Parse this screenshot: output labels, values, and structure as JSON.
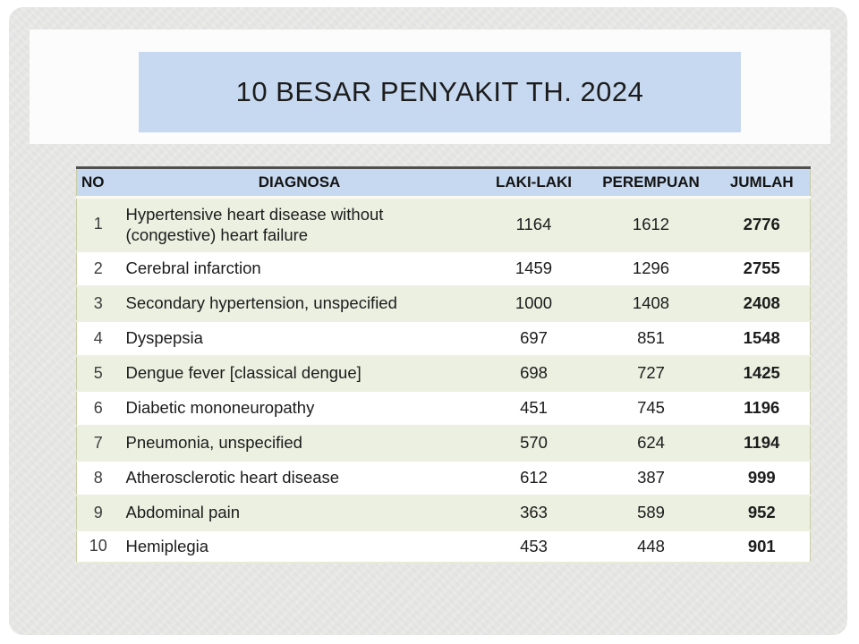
{
  "slide": {
    "title": "10 BESAR PENYAKIT TH. 2024"
  },
  "table": {
    "columns": [
      "NO",
      "DIAGNOSA",
      "LAKI-LAKI",
      "PEREMPUAN",
      "JUMLAH"
    ],
    "rows": [
      {
        "no": "1",
        "diagnosa": "Hypertensive heart disease without (congestive) heart failure",
        "laki_laki": "1164",
        "perempuan": "1612",
        "jumlah": "2776"
      },
      {
        "no": "2",
        "diagnosa": "Cerebral infarction",
        "laki_laki": "1459",
        "perempuan": "1296",
        "jumlah": "2755"
      },
      {
        "no": "3",
        "diagnosa": "Secondary hypertension, unspecified",
        "laki_laki": "1000",
        "perempuan": "1408",
        "jumlah": "2408"
      },
      {
        "no": "4",
        "diagnosa": "Dyspepsia",
        "laki_laki": "697",
        "perempuan": "851",
        "jumlah": "1548"
      },
      {
        "no": "5",
        "diagnosa": "Dengue fever [classical dengue]",
        "laki_laki": "698",
        "perempuan": "727",
        "jumlah": "1425"
      },
      {
        "no": "6",
        "diagnosa": "Diabetic mononeuropathy",
        "laki_laki": "451",
        "perempuan": "745",
        "jumlah": "1196"
      },
      {
        "no": "7",
        "diagnosa": "Pneumonia, unspecified",
        "laki_laki": "570",
        "perempuan": "624",
        "jumlah": "1194"
      },
      {
        "no": "8",
        "diagnosa": "Atherosclerotic heart disease",
        "laki_laki": "612",
        "perempuan": "387",
        "jumlah": "999"
      },
      {
        "no": "9",
        "diagnosa": "Abdominal pain",
        "laki_laki": "363",
        "perempuan": "589",
        "jumlah": "952"
      },
      {
        "no": "10",
        "diagnosa": "Hemiplegia",
        "laki_laki": "453",
        "perempuan": "448",
        "jumlah": "901"
      }
    ]
  },
  "colors": {
    "slide_background": "#e8e8e7",
    "title_band": "#fcfcfc",
    "title_box": "#c7d9f0",
    "header_row": "#c7d9f0",
    "stripe_row": "#ecf0e1",
    "plain_row": "#ffffff",
    "table_side_border": "#c9cda4",
    "table_top_border": "#4f4f4f",
    "text": "#1c1c1c"
  }
}
